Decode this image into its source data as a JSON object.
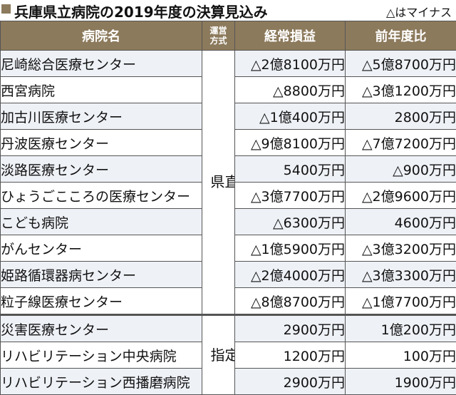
{
  "title": "兵庫県立病院の2019年度の決算見込み",
  "note": "△はマイナス",
  "headers": {
    "hospital": "病院名",
    "management": "運営\n方式",
    "profit": "経常損益",
    "yoy": "前年度比"
  },
  "groups": [
    {
      "management": "県直営",
      "rows": [
        {
          "name": "尼崎総合医療センター",
          "profit": "△2億8100万円",
          "yoy": "△5億8700万円"
        },
        {
          "name": "西宮病院",
          "profit": "△8800万円",
          "yoy": "△3億1200万円"
        },
        {
          "name": "加古川医療センター",
          "profit": "△1億400万円",
          "yoy": "2800万円"
        },
        {
          "name": "丹波医療センター",
          "profit": "△9億8100万円",
          "yoy": "△7億7200万円"
        },
        {
          "name": "淡路医療センター",
          "profit": "5400万円",
          "yoy": "△900万円"
        },
        {
          "name": "ひょうごこころの医療センター",
          "profit": "△3億7700万円",
          "yoy": "△2億9600万円"
        },
        {
          "name": "こども病院",
          "profit": "△6300万円",
          "yoy": "4600万円"
        },
        {
          "name": "がんセンター",
          "profit": "△1億5900万円",
          "yoy": "△3億3200万円"
        },
        {
          "name": "姫路循環器病センター",
          "profit": "△2億4000万円",
          "yoy": "△3億3300万円"
        },
        {
          "name": "粒子線医療センター",
          "profit": "△8億8700万円",
          "yoy": "△1億7700万円"
        }
      ]
    },
    {
      "management": "指定管理",
      "rows": [
        {
          "name": "災害医療センター",
          "profit": "2900万円",
          "yoy": "1億200万円"
        },
        {
          "name": "リハビリテーション中央病院",
          "profit": "1200万円",
          "yoy": "100万円"
        },
        {
          "name": "リハビリテーション西播磨病院",
          "profit": "2900万円",
          "yoy": "1900万円"
        }
      ]
    }
  ]
}
